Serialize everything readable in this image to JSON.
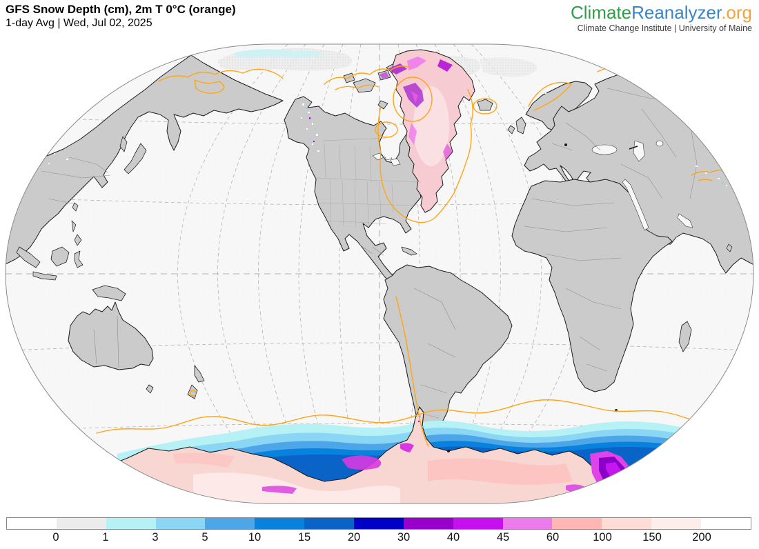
{
  "header": {
    "title": "GFS Snow Depth (cm), 2m T 0°C (orange)",
    "subtitle": "1-day Avg | Wed, Jul 02, 2025"
  },
  "logo": {
    "part1": "Climate",
    "part2": "Reanalyzer",
    "part3": ".org",
    "tagline": "Climate Change Institute | University of Maine",
    "colors": {
      "part1": "#2e9e48",
      "part2": "#3a86c4",
      "part3": "#f2a33c",
      "tagline": "#3c3c3c"
    }
  },
  "colorbar": {
    "units": "cm",
    "tick_labels": [
      "0",
      "1",
      "3",
      "5",
      "10",
      "15",
      "20",
      "30",
      "40",
      "45",
      "60",
      "100",
      "150",
      "200"
    ],
    "segments": [
      {
        "color": "#ffffff",
        "stipple": false
      },
      {
        "color": "#ececec",
        "stipple": true
      },
      {
        "color": "#b5f1f5",
        "stipple": false
      },
      {
        "color": "#8ad6f4",
        "stipple": false
      },
      {
        "color": "#4da6e8",
        "stipple": false
      },
      {
        "color": "#0982de",
        "stipple": false
      },
      {
        "color": "#0a64c8",
        "stipple": false
      },
      {
        "color": "#0000c8",
        "stipple": false
      },
      {
        "color": "#9900cc",
        "stipple": false
      },
      {
        "color": "#c610f0",
        "stipple": false
      },
      {
        "color": "#ee7bee",
        "stipple": false
      },
      {
        "color": "#ffb6b4",
        "stipple": false
      },
      {
        "color": "#ffdcd6",
        "stipple": false
      },
      {
        "color": "#fdedeb",
        "stipple": false
      },
      {
        "color": "#ffffff",
        "stipple": false
      }
    ],
    "border_color": "#8a8a8a"
  },
  "map": {
    "colors": {
      "ocean": "#f7f7f7",
      "land": "#cbcbcb",
      "coastline": "#1a1a1a",
      "country_border": "#8f8f8f",
      "state_border": "#a8a8a8",
      "graticule": "#b0b0b0",
      "frame": "#8a8a8a",
      "isotherm_orange": "#ffa513",
      "greenland_snow": "#f7cbd2",
      "antarctica_snow": "#f8d7d3"
    },
    "notable_features": [
      "Deep snow (pink, 100-200+ cm) over Greenland ice sheet",
      "Deep snow (pink) over Antarctic interior with blue coastal sea-ice snow bands",
      "Purple/magenta snow (30-60 cm) on Canadian Arctic islands, Svalbard and Ross Sea area",
      "Orange 2m 0°C isotherm around Arctic coasts, Greenland, Iceland, Scandinavia, Andes, Himalaya, New Zealand and the Southern Ocean"
    ]
  },
  "chart_data": {
    "type": "heatmap",
    "title": "GFS Snow Depth (cm), 2m T 0°C (orange)",
    "subtitle": "1-day Avg | Wed, Jul 02, 2025",
    "variable": "Snow depth",
    "units": "cm",
    "scale_boundaries": [
      0,
      1,
      3,
      5,
      10,
      15,
      20,
      30,
      40,
      45,
      60,
      100,
      150,
      200
    ],
    "scale_colors": [
      "#ffffff",
      "#ececec",
      "#b5f1f5",
      "#8ad6f4",
      "#4da6e8",
      "#0982de",
      "#0a64c8",
      "#0000c8",
      "#9900cc",
      "#c610f0",
      "#ee7bee",
      "#ffb6b4",
      "#ffdcd6",
      "#fdedeb",
      "#ffffff"
    ],
    "overlay": "2m temperature 0°C isotherm drawn in orange",
    "projection": "global world map, Americas-centered",
    "legend_position": "bottom"
  }
}
